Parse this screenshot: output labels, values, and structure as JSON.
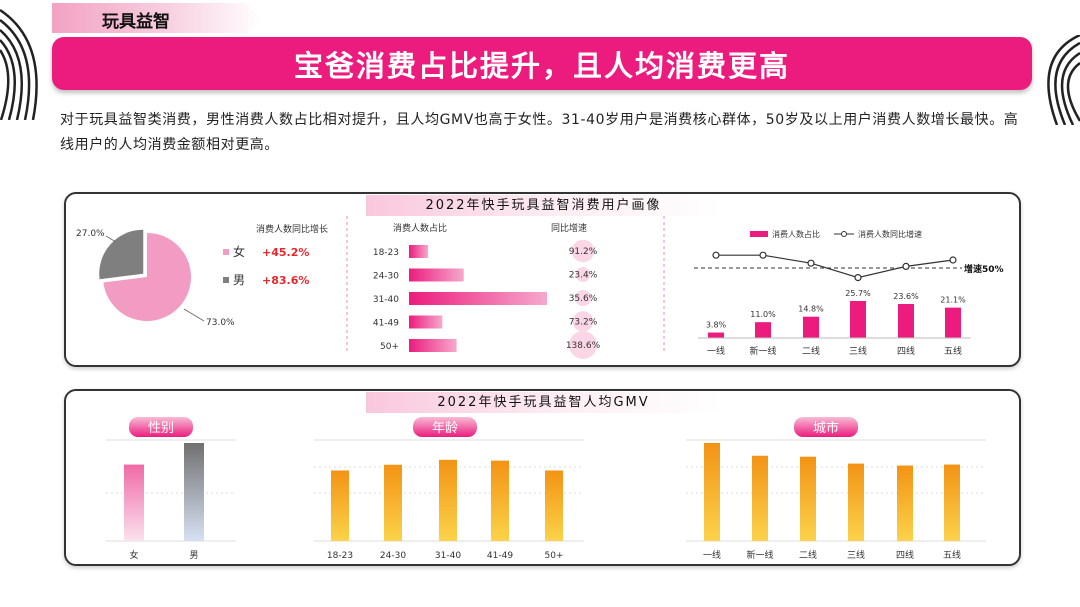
{
  "header": {
    "section_tag": "玩具益智",
    "title": "宝爸消费占比提升，且人均消费更高",
    "intro": "对于玩具益智类消费，男性消费人数占比相对提升，且人均GMV也高于女性。31-40岁用户是消费核心群体，50岁及以上用户消费人数增长最快。高线用户的人均消费金额相对更高。"
  },
  "panel1": {
    "title": "2022年快手玩具益智消费用户画像"
  },
  "panel2": {
    "title": "2022年快手玩具益智人均GMV"
  },
  "colors": {
    "pink": "#ec1c7e",
    "light_pink": "#f29cc4",
    "gray": "#7f7f7f",
    "orange": "#f59a1b",
    "red": "#e8262b"
  },
  "chart_data": [
    {
      "type": "pie",
      "categories": [
        "女",
        "男"
      ],
      "values": [
        73.0,
        27.0
      ],
      "labels": [
        "73.0%",
        "27.0%"
      ],
      "column_header": "消费人数同比增长",
      "growth": [
        "+45.2%",
        "+83.6%"
      ]
    },
    {
      "type": "bar",
      "categories": [
        "18-23",
        "24-30",
        "31-40",
        "41-49",
        "50+"
      ],
      "xlabel": "消费人数占比",
      "values": [
        8,
        23,
        58,
        14,
        20
      ],
      "growth_label": "同比增速",
      "growth": [
        91.2,
        23.4,
        35.6,
        73.2,
        138.6
      ],
      "growth_labels": [
        "91.2%",
        "23.4%",
        "35.6%",
        "73.2%",
        "138.6%"
      ]
    },
    {
      "type": "bar",
      "categories": [
        "一线",
        "新一线",
        "二线",
        "三线",
        "四线",
        "五线"
      ],
      "series": [
        {
          "name": "消费人数占比",
          "values": [
            3.8,
            11.0,
            14.8,
            25.7,
            23.6,
            21.1
          ],
          "labels": [
            "3.8%",
            "11.0%",
            "14.8%",
            "25.7%",
            "23.6%",
            "21.1%"
          ]
        },
        {
          "name": "消费人数同比增速",
          "values": [
            58,
            58,
            53,
            44,
            51,
            55
          ]
        }
      ],
      "reference_label": "增速50%",
      "reference_value": 50
    },
    {
      "type": "bar",
      "title": "性别",
      "categories": [
        "女",
        "男"
      ],
      "values": [
        0.78,
        1.0
      ]
    },
    {
      "type": "bar",
      "title": "年龄",
      "categories": [
        "18-23",
        "24-30",
        "31-40",
        "41-49",
        "50+"
      ],
      "values": [
        0.86,
        0.93,
        0.99,
        0.98,
        0.86
      ]
    },
    {
      "type": "bar",
      "title": "城市",
      "categories": [
        "一线",
        "新一线",
        "二线",
        "三线",
        "四线",
        "五线"
      ],
      "values": [
        1.0,
        0.87,
        0.86,
        0.79,
        0.77,
        0.78
      ]
    }
  ]
}
